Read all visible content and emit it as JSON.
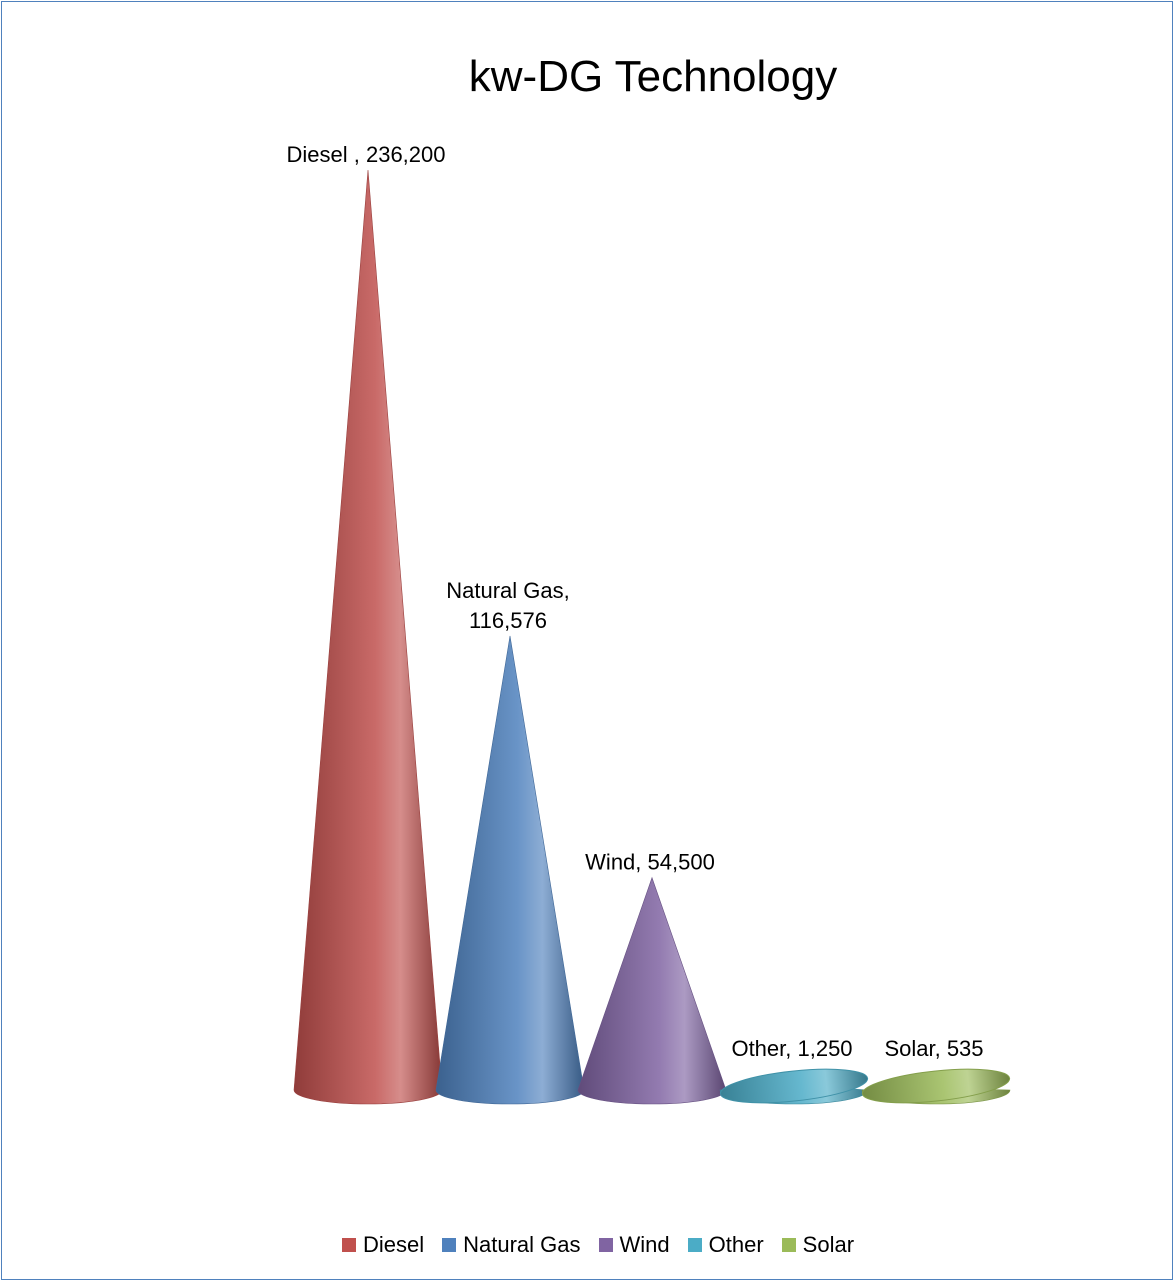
{
  "chart_data": {
    "type": "bar",
    "shape": "cone-3d",
    "title": "kw-DG Technology",
    "categories": [
      "Diesel",
      "Natural Gas",
      "Wind",
      "Other",
      "Solar"
    ],
    "values": [
      236200,
      116576,
      54500,
      1250,
      535
    ],
    "data_labels": [
      "Diesel , 236,200",
      "Natural Gas, 116,576",
      "Wind, 54,500",
      "Other, 1,250",
      "Solar, 535"
    ],
    "colors": [
      "#c0504d",
      "#4f81bd",
      "#8064a2",
      "#4bacc6",
      "#9bbb59"
    ],
    "legend": {
      "position": "bottom",
      "entries": [
        "Diesel",
        "Natural Gas",
        "Wind",
        "Other",
        "Solar"
      ]
    },
    "axes_visible": false,
    "grid": false
  }
}
